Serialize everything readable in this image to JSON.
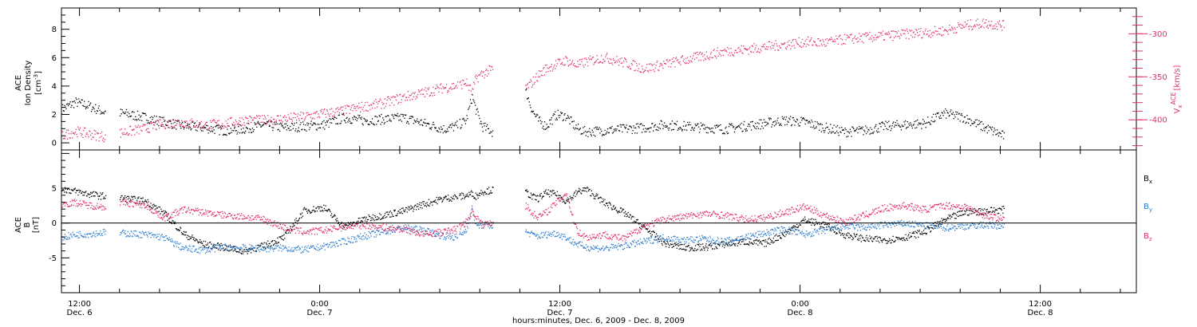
{
  "chart_data": [
    {
      "type": "scatter",
      "panel": "top",
      "x_label": "hours:minutes, Dec.  6, 2009 - Dec.  8, 2009",
      "x_ticks": [
        {
          "hour": 12,
          "time": "12:00",
          "date": "Dec. 6"
        },
        {
          "hour": 24,
          "time": "0:00",
          "date": "Dec. 7"
        },
        {
          "hour": 36,
          "time": "12:00",
          "date": "Dec. 7"
        },
        {
          "hour": 48,
          "time": "0:00",
          "date": "Dec. 8"
        },
        {
          "hour": 60,
          "time": "12:00",
          "date": "Dec. 8"
        }
      ],
      "x_range_hours": [
        11.1,
        64.8
      ],
      "left_axis": {
        "label_line1": "ACE",
        "label_line2": "Ion Density",
        "units_main": "[cm",
        "units_sup": "-3",
        "units_tail": "]",
        "range": [
          -0.5,
          9.5
        ],
        "ticks": [
          "0",
          "2",
          "4",
          "6",
          "8"
        ],
        "tick_values": [
          0,
          2,
          4,
          6,
          8
        ]
      },
      "right_axis": {
        "label_main": "V",
        "label_sub": "x",
        "label_sup": "ACE",
        "units": "[km/s]",
        "range": [
          -435,
          -270
        ],
        "ticks": [
          "-300",
          "-350",
          "-400"
        ],
        "tick_values": [
          -300,
          -350,
          -400
        ],
        "color": "#e0306a"
      },
      "series": [
        {
          "color": "#000000",
          "axis": "left",
          "x_hours": [
            11.1,
            11.8,
            12.5,
            13.2,
            14.2,
            15.3,
            16.2,
            17.2,
            18.2,
            19.2,
            20.2,
            21.2,
            22.2,
            23.2,
            24.2,
            25.2,
            26.2,
            27.2,
            28.2,
            29.2,
            30.2,
            30.8,
            31.3,
            31.6,
            31.8,
            32.1,
            32.6,
            34.3,
            34.6,
            34.9,
            35.3,
            35.8,
            36.3,
            36.6,
            36.9,
            37.3,
            38.2,
            39.2,
            40.2,
            41.2,
            42.2,
            43.2,
            44.2,
            45.2,
            46.2,
            47.2,
            48.2,
            49.2,
            50.2,
            51.2,
            52.2,
            53.2,
            54.2,
            55.2,
            56.2,
            57.2,
            58.2
          ],
          "values": [
            2.4,
            2.9,
            2.6,
            2.2,
            2.1,
            1.8,
            1.5,
            1.2,
            1.1,
            0.9,
            1.0,
            1.3,
            1.1,
            1.2,
            1.3,
            1.8,
            1.6,
            1.7,
            1.8,
            1.4,
            1.0,
            1.2,
            1.6,
            3.3,
            2.3,
            1.2,
            0.8,
            3.6,
            2.3,
            1.6,
            1.2,
            2.0,
            1.9,
            1.4,
            1.0,
            0.8,
            0.9,
            1.0,
            1.1,
            1.3,
            1.2,
            1.1,
            1.0,
            1.2,
            1.4,
            1.6,
            1.5,
            1.1,
            0.8,
            0.9,
            1.2,
            1.3,
            1.4,
            2.1,
            1.8,
            1.1,
            0.5
          ]
        },
        {
          "color": "#e0306a",
          "axis": "right",
          "x_hours": [
            11.1,
            11.8,
            12.5,
            13.2,
            14.2,
            15.2,
            16.2,
            17.2,
            18.2,
            19.2,
            20.2,
            21.2,
            22.2,
            23.2,
            24.2,
            25.2,
            26.2,
            27.2,
            28.2,
            29.2,
            30.2,
            30.8,
            31.3,
            31.6,
            31.8,
            32.1,
            32.6,
            34.3,
            34.6,
            34.9,
            35.3,
            35.8,
            36.3,
            36.6,
            36.9,
            37.3,
            38.2,
            39.2,
            40.2,
            41.2,
            42.2,
            43.2,
            44.2,
            45.2,
            46.2,
            47.2,
            48.2,
            49.2,
            50.2,
            51.2,
            52.2,
            53.2,
            54.2,
            55.2,
            56.2,
            57.2,
            58.2
          ],
          "values": [
            -418,
            -413,
            -416,
            -419,
            -414,
            -410,
            -404,
            -402,
            -406,
            -404,
            -400,
            -400,
            -398,
            -396,
            -392,
            -389,
            -384,
            -380,
            -373,
            -368,
            -362,
            -360,
            -356,
            -368,
            -351,
            -346,
            -341,
            -362,
            -356,
            -348,
            -340,
            -335,
            -330,
            -334,
            -336,
            -332,
            -327,
            -333,
            -340,
            -335,
            -330,
            -325,
            -320,
            -318,
            -315,
            -312,
            -309,
            -310,
            -306,
            -304,
            -302,
            -300,
            -298,
            -296,
            -290,
            -287,
            -290
          ]
        }
      ]
    },
    {
      "type": "scatter",
      "panel": "bottom",
      "left_axis": {
        "label_line1": "ACE",
        "label_line2": "B",
        "units": "[nT]",
        "range": [
          -10,
          10.5
        ],
        "ticks": [
          "5",
          "0",
          "-5"
        ],
        "tick_values": [
          5,
          0,
          -5
        ],
        "zero_line": true
      },
      "legend_position": "right",
      "series": [
        {
          "name": "B",
          "sub": "x",
          "color": "#000000",
          "x_hours": [
            11.1,
            11.8,
            12.5,
            13.2,
            14.2,
            15.3,
            16.2,
            17.2,
            18.2,
            19.2,
            20.2,
            21.2,
            22.2,
            23.2,
            24.2,
            25.2,
            26.2,
            27.2,
            28.2,
            29.2,
            30.2,
            30.8,
            31.3,
            31.6,
            31.8,
            32.1,
            32.6,
            34.3,
            34.6,
            34.9,
            35.3,
            35.8,
            36.3,
            36.6,
            36.9,
            37.3,
            38.2,
            39.2,
            40.2,
            41.2,
            42.2,
            43.2,
            44.2,
            45.2,
            46.2,
            47.2,
            48.2,
            49.2,
            50.2,
            51.2,
            52.2,
            53.2,
            54.2,
            55.2,
            56.2,
            57.2,
            58.2
          ],
          "values": [
            5.0,
            4.6,
            4.2,
            3.9,
            3.6,
            3.2,
            1.5,
            -1.5,
            -3.0,
            -3.4,
            -4.0,
            -3.2,
            -2.0,
            1.8,
            2.3,
            -0.5,
            0.6,
            1.2,
            1.8,
            2.8,
            3.6,
            3.8,
            4.0,
            4.3,
            3.9,
            4.6,
            4.8,
            4.5,
            3.8,
            3.6,
            4.4,
            4.2,
            3.2,
            3.8,
            4.6,
            4.9,
            3.0,
            1.5,
            -0.6,
            -2.8,
            -3.5,
            -3.4,
            -3.0,
            -2.6,
            -2.9,
            -1.5,
            0.5,
            -0.2,
            -1.6,
            -2.2,
            -2.4,
            -2.0,
            -1.2,
            0.5,
            1.6,
            1.8,
            2.0
          ]
        },
        {
          "name": "B",
          "sub": "y",
          "color": "#2f7fd0",
          "x_hours": [
            11.1,
            11.8,
            12.5,
            13.2,
            14.2,
            15.3,
            16.2,
            17.2,
            18.2,
            19.2,
            20.2,
            21.2,
            22.2,
            23.2,
            24.2,
            25.2,
            26.2,
            27.2,
            28.2,
            29.2,
            30.2,
            30.8,
            31.3,
            31.6,
            31.8,
            32.1,
            32.6,
            34.3,
            34.6,
            34.9,
            35.3,
            35.8,
            36.3,
            36.6,
            36.9,
            37.3,
            38.2,
            39.2,
            40.2,
            41.2,
            42.2,
            43.2,
            44.2,
            45.2,
            46.2,
            47.2,
            48.2,
            49.2,
            50.2,
            51.2,
            52.2,
            53.2,
            54.2,
            55.2,
            56.2,
            57.2,
            58.2
          ],
          "values": [
            -2.0,
            -1.6,
            -1.5,
            -1.3,
            -1.4,
            -1.6,
            -2.0,
            -3.6,
            -3.8,
            -3.4,
            -3.5,
            -3.6,
            -3.5,
            -3.8,
            -3.3,
            -2.6,
            -1.8,
            -1.2,
            -0.6,
            -1.0,
            -1.8,
            -2.0,
            -1.0,
            2.2,
            -0.4,
            -0.2,
            -0.3,
            -1.2,
            -1.6,
            -1.8,
            -1.6,
            -1.4,
            -2.0,
            -2.6,
            -3.0,
            -3.4,
            -3.6,
            -3.2,
            -2.6,
            -2.0,
            -2.4,
            -2.2,
            -2.6,
            -2.0,
            -1.4,
            -0.8,
            -1.6,
            -1.0,
            -0.4,
            -0.6,
            -0.2,
            0.0,
            -0.3,
            -0.6,
            -0.4,
            -0.2,
            -0.4
          ]
        },
        {
          "name": "B",
          "sub": "z",
          "color": "#e0306a",
          "x_hours": [
            11.1,
            11.8,
            12.5,
            13.2,
            14.2,
            15.3,
            16.2,
            17.2,
            18.2,
            19.2,
            20.2,
            21.2,
            22.2,
            23.2,
            24.2,
            25.2,
            26.2,
            27.2,
            28.2,
            29.2,
            30.2,
            30.8,
            31.3,
            31.6,
            31.8,
            32.1,
            32.6,
            34.3,
            34.6,
            34.9,
            35.3,
            35.8,
            36.3,
            36.6,
            36.9,
            37.3,
            38.2,
            39.2,
            40.2,
            41.2,
            42.2,
            43.2,
            44.2,
            45.2,
            46.2,
            47.2,
            48.2,
            49.2,
            50.2,
            51.2,
            52.2,
            53.2,
            54.2,
            55.2,
            56.2,
            57.2,
            58.2
          ],
          "values": [
            2.8,
            3.0,
            2.6,
            2.4,
            3.0,
            2.6,
            0.8,
            2.0,
            1.6,
            1.2,
            1.0,
            0.6,
            -0.6,
            -1.2,
            -1.0,
            -0.5,
            -0.2,
            -0.6,
            -0.8,
            -1.6,
            -1.2,
            -0.8,
            0.2,
            1.8,
            1.0,
            -0.2,
            0.2,
            2.6,
            1.4,
            1.0,
            1.6,
            3.0,
            4.4,
            1.0,
            -1.2,
            -2.0,
            -1.6,
            -2.2,
            -0.4,
            0.6,
            1.0,
            1.4,
            1.2,
            0.6,
            0.8,
            1.6,
            2.4,
            1.2,
            0.2,
            1.2,
            2.2,
            2.6,
            2.0,
            2.6,
            2.4,
            1.2,
            0.6
          ]
        }
      ]
    }
  ]
}
